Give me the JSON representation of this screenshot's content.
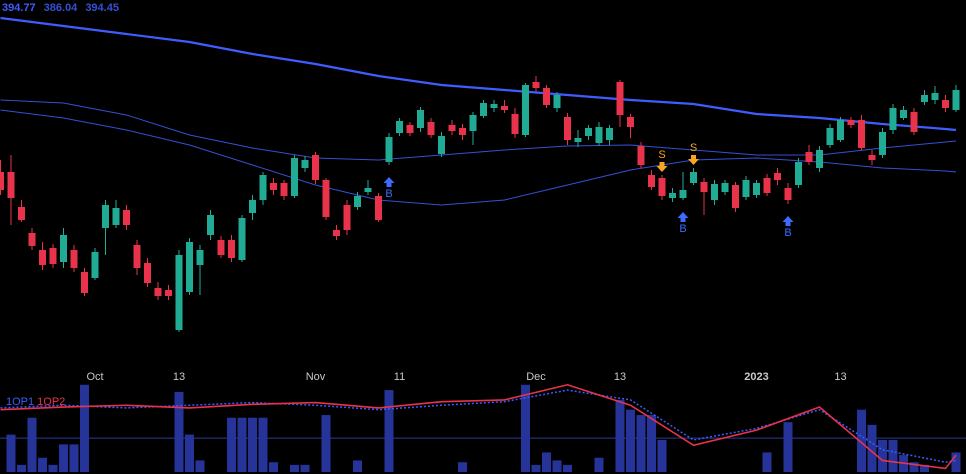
{
  "chart_data": [
    {
      "type": "candlestick",
      "categories": [
        null,
        null,
        null,
        null,
        null,
        null,
        null,
        null,
        null,
        "Oct",
        null,
        null,
        null,
        null,
        null,
        null,
        null,
        "13",
        null,
        null,
        null,
        null,
        null,
        null,
        null,
        null,
        null,
        null,
        null,
        null,
        "Nov",
        null,
        null,
        null,
        null,
        null,
        null,
        null,
        "11",
        null,
        null,
        null,
        null,
        null,
        null,
        null,
        null,
        null,
        null,
        null,
        null,
        "Dec",
        null,
        null,
        null,
        null,
        null,
        null,
        null,
        "13",
        null,
        null,
        null,
        null,
        null,
        null,
        null,
        null,
        null,
        null,
        null,
        null,
        "2023",
        null,
        null,
        null,
        null,
        null,
        null,
        null,
        "13",
        null,
        null,
        null,
        null,
        null,
        null,
        null,
        null,
        null,
        null,
        null
      ],
      "open": [
        385.6,
        385.6,
        378.6,
        373.4,
        370,
        370.4,
        367.6,
        370,
        365.6,
        364.4,
        374.4,
        375,
        378,
        371,
        367.4,
        362.4,
        362,
        354,
        361.6,
        367,
        373,
        372,
        372,
        368,
        377.4,
        380,
        383.4,
        383.4,
        380.8,
        386.4,
        389,
        384,
        374,
        379,
        378.6,
        381.6,
        380.8,
        387.6,
        393.4,
        395,
        394.4,
        395.6,
        389.2,
        395,
        394.4,
        393.8,
        396.8,
        398.4,
        398.8,
        397.2,
        393,
        403.6,
        402.4,
        398.4,
        396.6,
        391.6,
        392.8,
        391.4,
        392,
        403.6,
        396.6,
        390.8,
        385,
        384.4,
        380.4,
        380.4,
        383.4,
        383.6,
        380,
        381.6,
        383,
        380.6,
        381,
        384.4,
        385.4,
        382.4,
        383,
        389.6,
        386.4,
        391,
        392,
        396,
        396,
        389,
        389,
        394,
        396.4,
        397.6,
        399.6,
        400,
        400,
        398
      ],
      "high": [
        388,
        389,
        380,
        374.4,
        371.6,
        371.2,
        374.4,
        371,
        366.4,
        370.4,
        380,
        380,
        379,
        372,
        368.4,
        363.6,
        363,
        370,
        372.4,
        371,
        378,
        372.8,
        373,
        377,
        381,
        385.6,
        384.4,
        384,
        389,
        388.8,
        389.6,
        384.4,
        375,
        380,
        381.6,
        384,
        381.4,
        393.4,
        396.4,
        395.6,
        398.6,
        396.4,
        393.6,
        396,
        395.2,
        397.6,
        400,
        400,
        400,
        398.4,
        403.4,
        404.8,
        403,
        401.6,
        397.4,
        394,
        395,
        395.6,
        395,
        404,
        397.2,
        391.6,
        386,
        385,
        382.4,
        385.6,
        386.4,
        384.4,
        384,
        384,
        383.6,
        384.8,
        384,
        385.2,
        386.4,
        383.4,
        388.4,
        391,
        390.8,
        395.2,
        396.6,
        396.6,
        397,
        390,
        394.4,
        399.2,
        398.8,
        398.4,
        402,
        402.8,
        401,
        403
      ],
      "low": [
        381,
        375,
        375.6,
        370,
        366,
        366.4,
        366.4,
        365.6,
        360.8,
        364,
        369,
        374.4,
        374,
        365,
        362.6,
        360,
        360,
        353.6,
        361,
        361,
        372,
        368.4,
        367.6,
        367.6,
        376,
        379,
        381,
        380,
        380.4,
        385.6,
        383.2,
        376,
        372,
        373,
        378,
        381,
        375.6,
        387,
        392.8,
        392.8,
        393.6,
        392.4,
        388.6,
        393,
        392,
        391,
        396.4,
        397.6,
        397.4,
        392.4,
        392.6,
        401.6,
        398.4,
        397.6,
        391,
        390.6,
        392,
        390.8,
        391,
        394.6,
        392.4,
        386.4,
        382,
        380,
        379.6,
        380,
        383,
        377,
        379,
        381,
        377.6,
        380,
        380.4,
        380.8,
        383,
        379.2,
        382.4,
        387,
        385.6,
        390.4,
        391.6,
        394.4,
        390,
        387,
        388.4,
        393.2,
        396,
        393,
        399,
        399.2,
        397.6,
        397.6
      ],
      "close": [
        382,
        380.4,
        376,
        370.8,
        367,
        367.2,
        373,
        366.4,
        361.4,
        369.6,
        379,
        378.4,
        375,
        366.4,
        363.4,
        360.8,
        360.8,
        369,
        371.6,
        370,
        377,
        369,
        368.4,
        376.4,
        380,
        385,
        382,
        380.8,
        388.4,
        388,
        384,
        376.6,
        372.8,
        374,
        380.8,
        382.4,
        376,
        392.6,
        395.8,
        393.4,
        398,
        393,
        392.8,
        393.8,
        393,
        397,
        399.4,
        399.2,
        398,
        393.2,
        403,
        402.4,
        399,
        401,
        392,
        392.4,
        394.4,
        394.6,
        394.4,
        397,
        394.6,
        387,
        382.6,
        380.8,
        381.4,
        382,
        385.6,
        381.6,
        383.2,
        383.4,
        378.4,
        384,
        383.4,
        381.4,
        384,
        380,
        387.6,
        387.6,
        390,
        394.4,
        396,
        395,
        390.4,
        388,
        393.6,
        398.4,
        398,
        393.6,
        401,
        401.4,
        398.4,
        402
      ],
      "up_color": "#22ab94",
      "down_color": "#e8334a",
      "ylim": [
        349,
        420
      ],
      "moving_averages": [
        {
          "color": "#3f5cff",
          "width": 2.2,
          "last_value": 394.77,
          "x": [
            0,
            6,
            12,
            18,
            24,
            30,
            36,
            42,
            48,
            54,
            60,
            66,
            72,
            78,
            84,
            90,
            91
          ],
          "values": [
            416.4,
            414.8,
            413.2,
            411.6,
            409.2,
            407.2,
            404.8,
            403,
            402,
            401,
            400,
            399.2,
            397.2,
            396.4,
            395.2,
            394.2,
            394
          ]
        },
        {
          "color": "#3550d4",
          "width": 1,
          "last_value": 386.04,
          "x": [
            0,
            6,
            12,
            18,
            24,
            30,
            36,
            42,
            48,
            54,
            60,
            66,
            72,
            78,
            84,
            90,
            91
          ],
          "values": [
            398,
            396.4,
            394,
            391,
            387,
            383,
            380,
            379,
            380,
            383,
            386,
            388,
            388.4,
            387.6,
            386.4,
            385.8,
            385.6
          ]
        },
        {
          "color": "#3550d4",
          "width": 1,
          "last_value": 394.45,
          "x": [
            0,
            6,
            12,
            18,
            24,
            30,
            36,
            42,
            48,
            54,
            60,
            66,
            72,
            78,
            84,
            90,
            91
          ],
          "values": [
            400,
            399.4,
            397,
            393,
            390.4,
            388.4,
            388,
            389,
            390,
            390.8,
            391,
            390,
            389,
            389,
            390.4,
            391.6,
            391.8
          ]
        }
      ],
      "signals": [
        {
          "index": 37,
          "label": "B",
          "color": "#3d6bff"
        },
        {
          "index": 63,
          "label": "S",
          "color": "#f5a623"
        },
        {
          "index": 65,
          "label": "B",
          "color": "#3d6bff"
        },
        {
          "index": 66,
          "label": "S",
          "color": "#f5a623"
        },
        {
          "index": 75,
          "label": "B",
          "color": "#3d6bff"
        }
      ]
    },
    {
      "type": "indicator",
      "ylim": [
        0,
        100
      ],
      "level": 38,
      "bar_color": "#26349a",
      "bars": [
        null,
        42,
        8,
        61,
        16,
        8,
        31,
        31,
        98,
        null,
        null,
        null,
        null,
        null,
        null,
        null,
        null,
        90,
        42,
        13,
        null,
        null,
        61,
        61,
        61,
        61,
        11,
        null,
        8,
        8,
        null,
        64,
        null,
        null,
        13,
        null,
        null,
        92,
        null,
        null,
        null,
        null,
        null,
        null,
        11,
        null,
        null,
        null,
        null,
        null,
        98,
        8,
        22,
        13,
        8,
        null,
        null,
        16,
        null,
        81,
        70,
        64,
        64,
        36,
        null,
        null,
        null,
        null,
        null,
        null,
        null,
        null,
        null,
        22,
        null,
        56,
        null,
        null,
        null,
        null,
        null,
        null,
        70,
        53,
        36,
        36,
        19,
        11,
        8,
        null,
        null,
        22
      ],
      "series": [
        {
          "name": "1OP1",
          "color": "#3a5cff",
          "dashed": true,
          "x": [
            0,
            6,
            12,
            18,
            24,
            30,
            36,
            42,
            48,
            54,
            60,
            66,
            72,
            78,
            84,
            90,
            91
          ],
          "values": [
            72,
            75,
            72,
            75,
            78,
            75,
            70,
            75,
            79,
            92,
            81,
            36,
            49,
            70,
            25,
            11,
            13
          ]
        },
        {
          "name": "1OP2",
          "color": "#e8334a",
          "dashed": false,
          "x": [
            0,
            6,
            12,
            18,
            24,
            30,
            36,
            42,
            48,
            54,
            60,
            66,
            72,
            78,
            84,
            90,
            91
          ],
          "values": [
            70,
            73,
            75,
            72,
            76,
            78,
            72,
            79,
            81,
            98,
            75,
            30,
            47,
            73,
            13,
            4,
            19
          ]
        }
      ]
    }
  ]
}
